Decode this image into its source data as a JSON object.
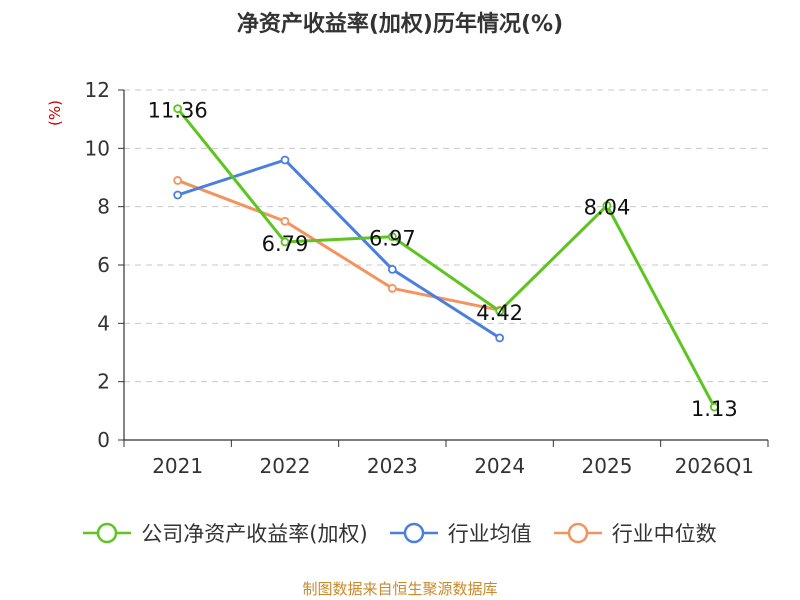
{
  "chart_data": {
    "type": "line",
    "title": "净资产收益率(加权)历年情况(%)",
    "ylabel": "(%)",
    "xlabel": "",
    "categories": [
      "2021",
      "2022",
      "2023",
      "2024",
      "2025",
      "2026Q1"
    ],
    "ylim": [
      0,
      12
    ],
    "yticks": [
      0,
      2,
      4,
      6,
      8,
      10,
      12
    ],
    "grid": true,
    "series": [
      {
        "name": "公司净资产收益率(加权)",
        "color": "#5dc51f",
        "values": [
          11.36,
          6.79,
          6.97,
          4.42,
          8.04,
          1.13
        ],
        "labels": [
          "11.36",
          "6.79",
          "6.97",
          "4.42",
          "8.04",
          "1.13"
        ]
      },
      {
        "name": "行业均值",
        "color": "#4a7fe0",
        "values": [
          8.4,
          9.6,
          5.85,
          3.5,
          null,
          null
        ]
      },
      {
        "name": "行业中位数",
        "color": "#f4935e",
        "values": [
          8.9,
          7.5,
          5.2,
          4.45,
          null,
          null
        ]
      }
    ],
    "legend_position": "bottom"
  },
  "source": "制图数据来自恒生聚源数据库"
}
